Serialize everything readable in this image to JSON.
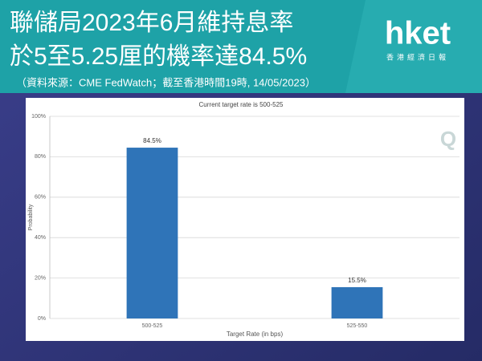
{
  "header": {
    "title_line1": "聯儲局2023年6月維持息率",
    "title_line2": "於5至5.25厘的機率達84.5%",
    "source": "（資料來源：CME FedWatch；截至香港時間19時, 14/05/2023）",
    "logo": "hket",
    "logo_subtitle": "香港經濟日報"
  },
  "chart_data": {
    "type": "bar",
    "title": "Current target rate is 500-525",
    "watermark": "Q",
    "categories": [
      "500-525",
      "525-550"
    ],
    "values": [
      84.5,
      15.5
    ],
    "value_labels": [
      "84.5%",
      "15.5%"
    ],
    "color": "#2f74b8",
    "xlabel": "Target Rate (in bps)",
    "ylabel": "Probability",
    "ylim": [
      0,
      100
    ],
    "yticks": [
      {
        "value": 0,
        "label": "0%"
      },
      {
        "value": 20,
        "label": "20%"
      },
      {
        "value": 40,
        "label": "40%"
      },
      {
        "value": 60,
        "label": "60%"
      },
      {
        "value": 80,
        "label": "80%"
      },
      {
        "value": 100,
        "label": "100%"
      }
    ],
    "grid": true
  }
}
